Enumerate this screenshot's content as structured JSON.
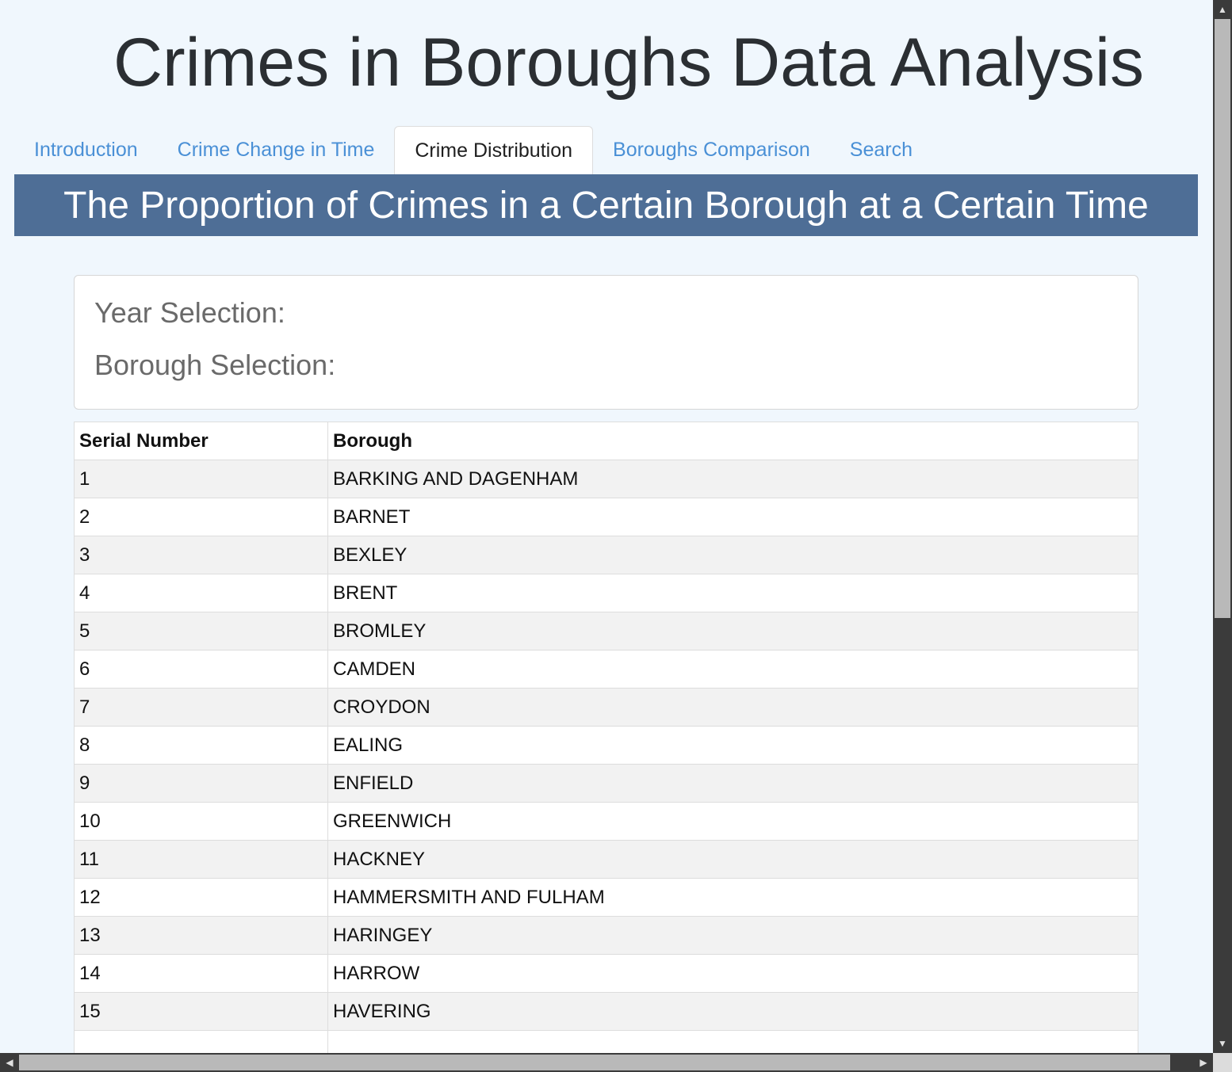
{
  "header": {
    "title": "Crimes in Boroughs Data Analysis"
  },
  "tabs": [
    {
      "label": "Introduction",
      "active": false
    },
    {
      "label": "Crime Change in Time",
      "active": false
    },
    {
      "label": "Crime Distribution",
      "active": true
    },
    {
      "label": "Boroughs Comparison",
      "active": false
    },
    {
      "label": "Search",
      "active": false
    }
  ],
  "banner": {
    "title": "The Proportion of Crimes in a Certain Borough at a Certain Time"
  },
  "selection": {
    "year_label": "Year Selection:",
    "borough_label": "Borough Selection:"
  },
  "table": {
    "headers": [
      "Serial Number",
      "Borough"
    ],
    "rows": [
      [
        "1",
        "BARKING AND DAGENHAM"
      ],
      [
        "2",
        "BARNET"
      ],
      [
        "3",
        "BEXLEY"
      ],
      [
        "4",
        "BRENT"
      ],
      [
        "5",
        "BROMLEY"
      ],
      [
        "6",
        "CAMDEN"
      ],
      [
        "7",
        "CROYDON"
      ],
      [
        "8",
        "EALING"
      ],
      [
        "9",
        "ENFIELD"
      ],
      [
        "10",
        "GREENWICH"
      ],
      [
        "11",
        "HACKNEY"
      ],
      [
        "12",
        "HAMMERSMITH AND FULHAM"
      ],
      [
        "13",
        "HARINGEY"
      ],
      [
        "14",
        "HARROW"
      ],
      [
        "15",
        "HAVERING"
      ],
      [
        "",
        ""
      ]
    ]
  },
  "scrollbars": {
    "up_icon": "▲",
    "down_icon": "▼",
    "left_icon": "◀",
    "right_icon": "▶"
  }
}
